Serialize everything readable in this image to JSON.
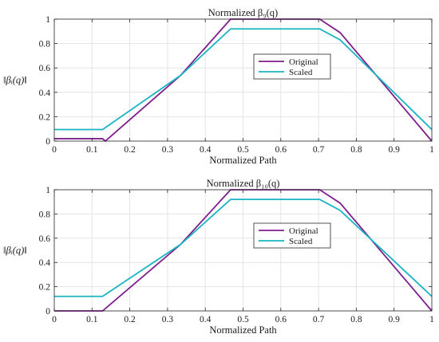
{
  "chart_data": [
    {
      "type": "line",
      "title": "Normalized β₉(q)",
      "xlabel": "Normalized Path",
      "ylabel": "‖βᵢ(q)‖",
      "xlim": [
        0,
        1
      ],
      "ylim": [
        0,
        1
      ],
      "xticks": [
        "0",
        "0.1",
        "0.2",
        "0.3",
        "0.4",
        "0.5",
        "0.6",
        "0.7",
        "0.8",
        "0.9",
        "1"
      ],
      "yticks": [
        "0",
        "0.2",
        "0.4",
        "0.6",
        "0.8",
        "1"
      ],
      "grid": true,
      "legend_position": "center-right",
      "series": [
        {
          "name": "Original",
          "color": "#7e1e8c",
          "x": [
            0,
            0.128,
            0.135,
            0.335,
            0.467,
            0.703,
            0.757,
            1.0
          ],
          "y": [
            0.02,
            0.02,
            0.0,
            0.54,
            1.0,
            1.0,
            0.89,
            0.0
          ]
        },
        {
          "name": "Scaled",
          "color": "#19b4c3",
          "x": [
            0,
            0.128,
            0.335,
            0.467,
            0.703,
            0.757,
            1.0
          ],
          "y": [
            0.095,
            0.095,
            0.54,
            0.92,
            0.92,
            0.83,
            0.095
          ]
        }
      ]
    },
    {
      "type": "line",
      "title": "Normalized β₁₀(q)",
      "xlabel": "Normalized Path",
      "ylabel": "‖βᵢ(q)‖",
      "xlim": [
        0,
        1
      ],
      "ylim": [
        0,
        1
      ],
      "xticks": [
        "0",
        "0.1",
        "0.2",
        "0.3",
        "0.4",
        "0.5",
        "0.6",
        "0.7",
        "0.8",
        "0.9",
        "1"
      ],
      "yticks": [
        "0",
        "0.2",
        "0.4",
        "0.6",
        "0.8",
        "1"
      ],
      "grid": true,
      "legend_position": "center-right",
      "series": [
        {
          "name": "Original",
          "color": "#7e1e8c",
          "x": [
            0,
            0.128,
            0.335,
            0.467,
            0.703,
            0.757,
            1.0
          ],
          "y": [
            0.0,
            0.0,
            0.55,
            1.0,
            1.0,
            0.89,
            0.0
          ]
        },
        {
          "name": "Scaled",
          "color": "#19b4c3",
          "x": [
            0,
            0.128,
            0.335,
            0.467,
            0.703,
            0.757,
            1.0
          ],
          "y": [
            0.12,
            0.12,
            0.55,
            0.92,
            0.92,
            0.83,
            0.12
          ]
        }
      ]
    }
  ]
}
